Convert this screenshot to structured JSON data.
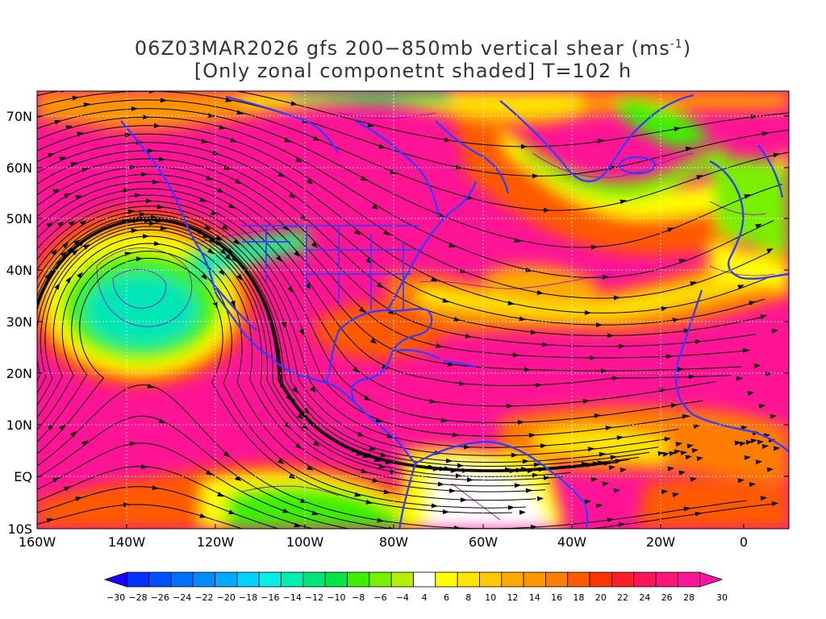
{
  "title": {
    "line1_prefix": "06Z03MAR2026 gfs 200−850mb vertical shear (ms",
    "line1_sup": "-1",
    "line1_suffix": ")",
    "line2": "[Only zonal componetnt shaded] T=102 h"
  },
  "lat_labels": [
    "70N",
    "60N",
    "50N",
    "40N",
    "30N",
    "20N",
    "10N",
    "EQ",
    "10S"
  ],
  "lon_labels": [
    "160W",
    "140W",
    "120W",
    "100W",
    "80W",
    "60W",
    "40W",
    "20W",
    "0"
  ],
  "colorbar": {
    "labels": [
      "−30",
      "−28",
      "−26",
      "−24",
      "−22",
      "−20",
      "−18",
      "−16",
      "−14",
      "−12",
      "−10",
      "−8",
      "−6",
      "−4",
      "4",
      "6",
      "8",
      "10",
      "12",
      "14",
      "16",
      "18",
      "20",
      "22",
      "24",
      "26",
      "28",
      "30"
    ],
    "colors": [
      "#1a00ff",
      "#0033ff",
      "#0050ff",
      "#006eff",
      "#008cff",
      "#00aaff",
      "#00d2ff",
      "#00f0e6",
      "#00f0b4",
      "#00e678",
      "#00e646",
      "#3cf000",
      "#78f000",
      "#b4f000",
      "#ffffff",
      "#ffff00",
      "#ffe600",
      "#ffc800",
      "#ffaa00",
      "#ff9600",
      "#ff7d00",
      "#ff5a00",
      "#ff3200",
      "#ff1e28",
      "#ff145a",
      "#ff1478",
      "#ff1496",
      "#ff14aa"
    ]
  },
  "colors": {
    "background_shear": "#ff1496",
    "coast": "#3b3bff",
    "contour": "#9b00c8",
    "streamline": "#000000"
  }
}
